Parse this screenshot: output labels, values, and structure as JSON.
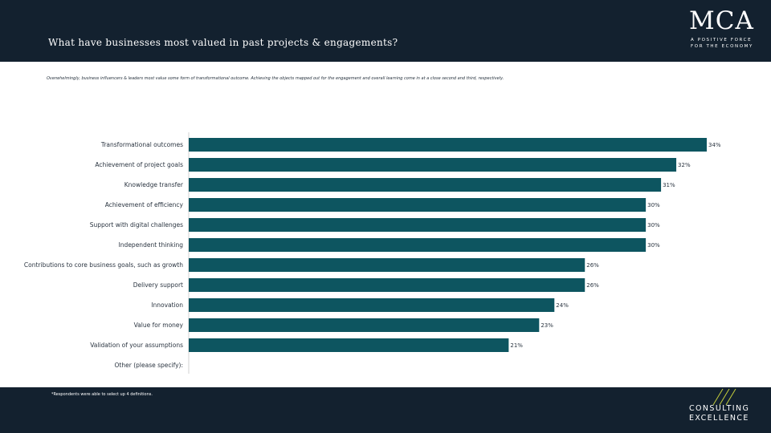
{
  "header": {
    "title": "What have businesses most valued in past projects & engagements?",
    "logo_text": "MCA",
    "logo_tagline_1": "A POSITIVE FORCE",
    "logo_tagline_2": "FOR THE ECONOMY"
  },
  "subtitle": "Overwhelmingly, business influencers & leaders most value some form of transformational outcome. Achieving the objects mapped out for the engagement and overall learning come in at a close second and third, respectively.",
  "chart_data": {
    "type": "bar",
    "orientation": "horizontal",
    "categories": [
      "Transformational outcomes",
      "Achievement of project goals",
      "Knowledge transfer",
      "Achievement of efficiency",
      "Support with digital challenges",
      "Independent thinking",
      "Contributions to core business goals, such as growth",
      "Delivery support",
      "Innovation",
      "Value for money",
      "Validation of your assumptions",
      "Other (please specify):"
    ],
    "values": [
      34,
      32,
      31,
      30,
      30,
      30,
      26,
      26,
      24,
      23,
      21,
      0
    ],
    "value_labels": [
      "34%",
      "32%",
      "31%",
      "30%",
      "30%",
      "30%",
      "26%",
      "26%",
      "24%",
      "23%",
      "21%",
      ""
    ],
    "xlim": [
      0,
      35
    ],
    "grid": false,
    "legend": "none",
    "bar_color": "#0d5560"
  },
  "footer": {
    "footnote": "*Respondents were able to select up 4 definitions.",
    "brand_line_1": "CONSULTING",
    "brand_line_2": "EXCELLENCE",
    "stripe_color": "#c5cf3c"
  }
}
